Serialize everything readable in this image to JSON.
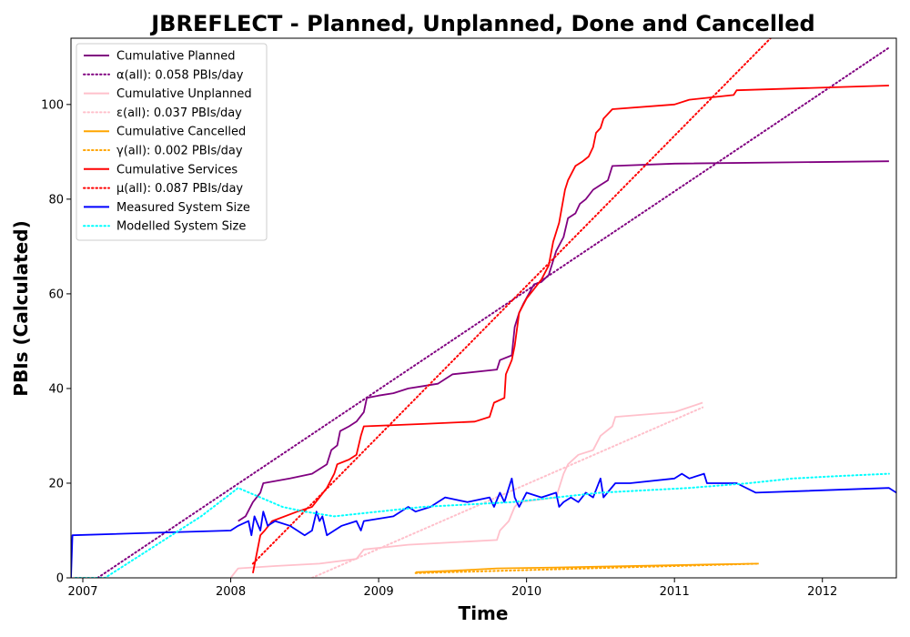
{
  "chart_data": {
    "type": "line",
    "title": "JBREFLECT - Planned, Unplanned, Done  and Cancelled",
    "xlabel": "Time",
    "ylabel": "PBIs (Calculated)",
    "xlim": [
      2006.92,
      2012.5
    ],
    "ylim": [
      0,
      114
    ],
    "x_ticks": [
      2007,
      2008,
      2009,
      2010,
      2011,
      2012
    ],
    "y_ticks": [
      0,
      20,
      40,
      60,
      80,
      100
    ],
    "grid": false,
    "legend_position": "top-left",
    "series": [
      {
        "name": "Cumulative Planned",
        "color": "#800080",
        "style": "solid",
        "points": [
          [
            2008.05,
            12
          ],
          [
            2008.1,
            13
          ],
          [
            2008.15,
            16
          ],
          [
            2008.2,
            18
          ],
          [
            2008.22,
            20
          ],
          [
            2008.4,
            21
          ],
          [
            2008.55,
            22
          ],
          [
            2008.65,
            24
          ],
          [
            2008.68,
            27
          ],
          [
            2008.72,
            28
          ],
          [
            2008.74,
            31
          ],
          [
            2008.8,
            32
          ],
          [
            2008.85,
            33
          ],
          [
            2008.9,
            35
          ],
          [
            2008.92,
            38
          ],
          [
            2009.0,
            38.5
          ],
          [
            2009.1,
            39
          ],
          [
            2009.2,
            40
          ],
          [
            2009.3,
            40.5
          ],
          [
            2009.4,
            41
          ],
          [
            2009.45,
            42
          ],
          [
            2009.5,
            43
          ],
          [
            2009.8,
            44
          ],
          [
            2009.82,
            46
          ],
          [
            2009.9,
            47
          ],
          [
            2009.92,
            53
          ],
          [
            2009.95,
            56
          ],
          [
            2009.98,
            58
          ],
          [
            2010.05,
            62
          ],
          [
            2010.1,
            62.5
          ],
          [
            2010.15,
            64
          ],
          [
            2010.2,
            69
          ],
          [
            2010.25,
            72
          ],
          [
            2010.28,
            76
          ],
          [
            2010.33,
            77
          ],
          [
            2010.36,
            79
          ],
          [
            2010.4,
            80
          ],
          [
            2010.45,
            82
          ],
          [
            2010.5,
            83
          ],
          [
            2010.55,
            84
          ],
          [
            2010.58,
            87
          ],
          [
            2011.0,
            87.5
          ],
          [
            2012.45,
            88
          ]
        ]
      },
      {
        "name": "α(all): 0.058 PBIs/day",
        "color": "#800080",
        "style": "dotted",
        "points": [
          [
            2007.1,
            0
          ],
          [
            2012.45,
            112
          ]
        ]
      },
      {
        "name": "Cumulative Unplanned",
        "color": "#ffc0cb",
        "style": "solid",
        "points": [
          [
            2008.0,
            0
          ],
          [
            2008.05,
            2
          ],
          [
            2008.3,
            2.5
          ],
          [
            2008.6,
            3
          ],
          [
            2008.85,
            4
          ],
          [
            2008.9,
            6
          ],
          [
            2009.2,
            7
          ],
          [
            2009.8,
            8
          ],
          [
            2009.82,
            10
          ],
          [
            2009.88,
            12
          ],
          [
            2009.92,
            15
          ],
          [
            2009.95,
            16
          ],
          [
            2010.2,
            17
          ],
          [
            2010.25,
            22
          ],
          [
            2010.28,
            24
          ],
          [
            2010.35,
            26
          ],
          [
            2010.45,
            27
          ],
          [
            2010.5,
            30
          ],
          [
            2010.58,
            32
          ],
          [
            2010.6,
            34
          ],
          [
            2011.0,
            35
          ],
          [
            2011.19,
            37
          ]
        ]
      },
      {
        "name": "ε(all): 0.037 PBIs/day",
        "color": "#ffc0cb",
        "style": "dotted",
        "points": [
          [
            2008.55,
            0
          ],
          [
            2011.19,
            36
          ]
        ]
      },
      {
        "name": "Cumulative Cancelled",
        "color": "#ffa500",
        "style": "solid",
        "points": [
          [
            2009.25,
            1.2
          ],
          [
            2009.5,
            1.5
          ],
          [
            2009.8,
            2
          ],
          [
            2010.2,
            2.2
          ],
          [
            2010.7,
            2.5
          ],
          [
            2011.2,
            2.8
          ],
          [
            2011.57,
            3
          ]
        ]
      },
      {
        "name": "γ(all): 0.002 PBIs/day",
        "color": "#ffa500",
        "style": "dotted",
        "points": [
          [
            2009.25,
            1
          ],
          [
            2011.57,
            3
          ]
        ]
      },
      {
        "name": "Cumulative Services",
        "color": "#ff0000",
        "style": "solid",
        "points": [
          [
            2008.15,
            1
          ],
          [
            2008.2,
            9
          ],
          [
            2008.23,
            10
          ],
          [
            2008.28,
            12
          ],
          [
            2008.45,
            14
          ],
          [
            2008.55,
            15
          ],
          [
            2008.6,
            17
          ],
          [
            2008.65,
            19
          ],
          [
            2008.7,
            22
          ],
          [
            2008.72,
            24
          ],
          [
            2008.8,
            25
          ],
          [
            2008.85,
            26
          ],
          [
            2008.88,
            30
          ],
          [
            2008.9,
            32
          ],
          [
            2009.3,
            32.5
          ],
          [
            2009.65,
            33
          ],
          [
            2009.75,
            34
          ],
          [
            2009.78,
            37
          ],
          [
            2009.85,
            38
          ],
          [
            2009.86,
            43
          ],
          [
            2009.9,
            46
          ],
          [
            2009.92,
            49
          ],
          [
            2009.95,
            56
          ],
          [
            2010.0,
            59
          ],
          [
            2010.05,
            61
          ],
          [
            2010.1,
            63
          ],
          [
            2010.15,
            66
          ],
          [
            2010.18,
            71
          ],
          [
            2010.22,
            75
          ],
          [
            2010.26,
            82
          ],
          [
            2010.28,
            84
          ],
          [
            2010.33,
            87
          ],
          [
            2010.38,
            88
          ],
          [
            2010.42,
            89
          ],
          [
            2010.45,
            91
          ],
          [
            2010.47,
            94
          ],
          [
            2010.5,
            95
          ],
          [
            2010.52,
            97
          ],
          [
            2010.58,
            99
          ],
          [
            2011.0,
            100
          ],
          [
            2011.1,
            101
          ],
          [
            2011.4,
            102
          ],
          [
            2011.42,
            103
          ],
          [
            2012.45,
            104
          ]
        ]
      },
      {
        "name": "μ(all): 0.087 PBIs/day",
        "color": "#ff0000",
        "style": "dotted",
        "points": [
          [
            2008.15,
            3
          ],
          [
            2011.65,
            114
          ]
        ]
      },
      {
        "name": "Measured System Size",
        "color": "#0000ff",
        "style": "solid",
        "points": [
          [
            2006.92,
            0
          ],
          [
            2006.93,
            9
          ],
          [
            2008.0,
            10
          ],
          [
            2008.05,
            11
          ],
          [
            2008.12,
            12
          ],
          [
            2008.14,
            9
          ],
          [
            2008.16,
            13
          ],
          [
            2008.2,
            10
          ],
          [
            2008.22,
            14
          ],
          [
            2008.25,
            11
          ],
          [
            2008.3,
            12
          ],
          [
            2008.4,
            11
          ],
          [
            2008.45,
            10
          ],
          [
            2008.5,
            9
          ],
          [
            2008.55,
            10
          ],
          [
            2008.58,
            14
          ],
          [
            2008.6,
            12
          ],
          [
            2008.62,
            13
          ],
          [
            2008.65,
            9
          ],
          [
            2008.7,
            10
          ],
          [
            2008.75,
            11
          ],
          [
            2008.85,
            12
          ],
          [
            2008.88,
            10
          ],
          [
            2008.9,
            12
          ],
          [
            2009.0,
            12.5
          ],
          [
            2009.1,
            13
          ],
          [
            2009.2,
            15
          ],
          [
            2009.25,
            14
          ],
          [
            2009.35,
            15
          ],
          [
            2009.45,
            17
          ],
          [
            2009.6,
            16
          ],
          [
            2009.75,
            17
          ],
          [
            2009.78,
            15
          ],
          [
            2009.82,
            18
          ],
          [
            2009.85,
            16
          ],
          [
            2009.88,
            19
          ],
          [
            2009.9,
            21
          ],
          [
            2009.92,
            17
          ],
          [
            2009.95,
            15
          ],
          [
            2010.0,
            18
          ],
          [
            2010.1,
            17
          ],
          [
            2010.2,
            18
          ],
          [
            2010.22,
            15
          ],
          [
            2010.25,
            16
          ],
          [
            2010.3,
            17
          ],
          [
            2010.35,
            16
          ],
          [
            2010.4,
            18
          ],
          [
            2010.45,
            17
          ],
          [
            2010.5,
            21
          ],
          [
            2010.52,
            17
          ],
          [
            2010.6,
            20
          ],
          [
            2010.7,
            20
          ],
          [
            2011.0,
            21
          ],
          [
            2011.05,
            22
          ],
          [
            2011.1,
            21
          ],
          [
            2011.2,
            22
          ],
          [
            2011.22,
            20
          ],
          [
            2011.42,
            20
          ],
          [
            2011.55,
            18
          ],
          [
            2012.45,
            19
          ],
          [
            2012.5,
            18
          ]
        ]
      },
      {
        "name": "Modelled System Size",
        "color": "#00ffff",
        "style": "dotted",
        "points": [
          [
            2006.95,
            0
          ],
          [
            2007.15,
            0
          ],
          [
            2007.5,
            7
          ],
          [
            2007.8,
            13
          ],
          [
            2008.05,
            19
          ],
          [
            2008.2,
            17
          ],
          [
            2008.35,
            15
          ],
          [
            2008.5,
            14
          ],
          [
            2008.7,
            13
          ],
          [
            2009.0,
            14
          ],
          [
            2009.3,
            15
          ],
          [
            2009.6,
            15.5
          ],
          [
            2009.9,
            16
          ],
          [
            2010.2,
            17
          ],
          [
            2010.5,
            18
          ],
          [
            2010.8,
            18.5
          ],
          [
            2011.1,
            19
          ],
          [
            2011.5,
            20
          ],
          [
            2011.8,
            21
          ],
          [
            2012.1,
            21.5
          ],
          [
            2012.45,
            22
          ]
        ]
      }
    ]
  }
}
